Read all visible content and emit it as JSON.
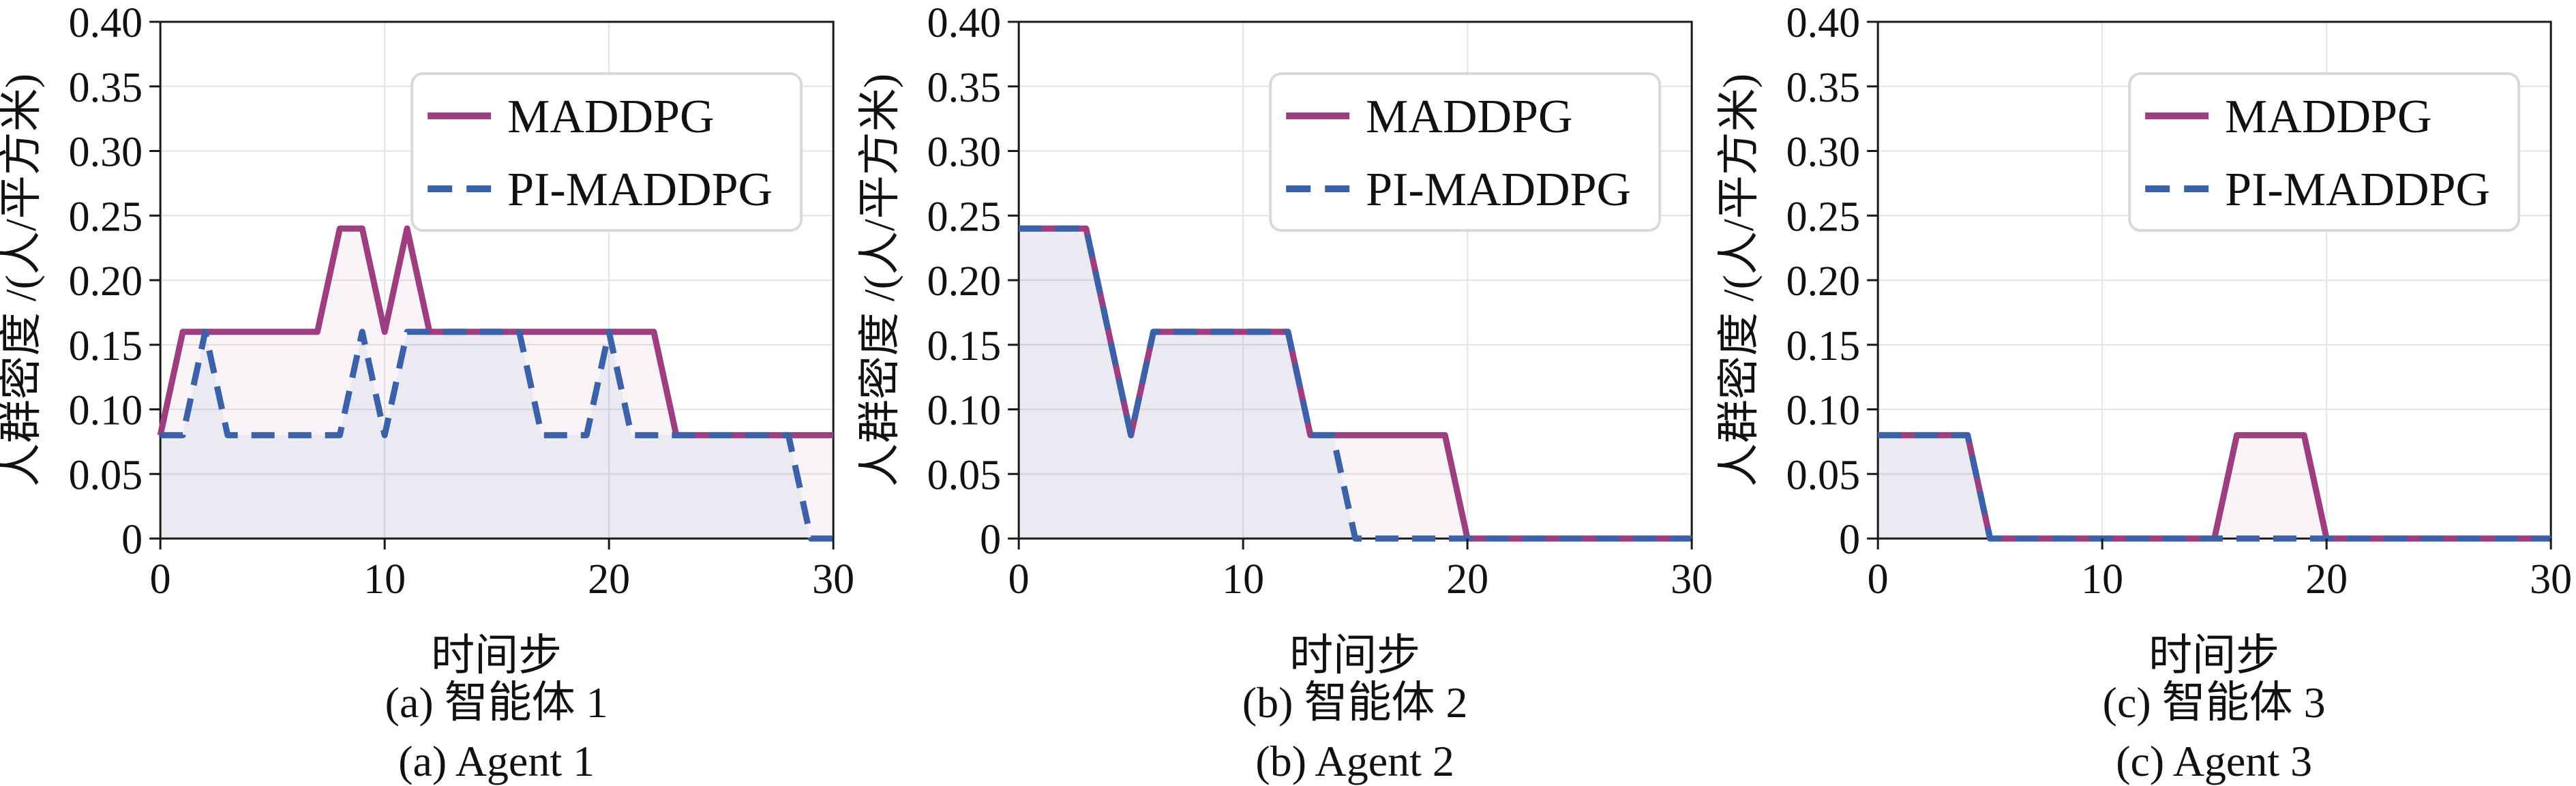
{
  "figure": {
    "ylabel": "人群密度 /(人/平方米)",
    "xlabel": "时间步",
    "legend": {
      "maddpg": "MADDPG",
      "pi_maddpg": "PI-MADDPG"
    },
    "ytick_labels": [
      "0",
      "0.05",
      "0.10",
      "0.15",
      "0.20",
      "0.25",
      "0.30",
      "0.35",
      "0.40"
    ],
    "xtick_labels": [
      "0",
      "10",
      "20",
      "30"
    ],
    "colors": {
      "maddpg": "#9e3d80",
      "pi_maddpg": "#3b62a9",
      "maddpg_fill": "rgba(158,61,128,0.06)",
      "pi_maddpg_fill": "rgba(59,98,169,0.07)",
      "grid": "#e4e4e4",
      "spine": "#1a1a1a",
      "text": "#111111",
      "legend_border": "#d9d9d9",
      "background": "#ffffff"
    }
  },
  "chart_data": [
    {
      "type": "line",
      "caption_cn": "(a) 智能体 1",
      "caption_en": "(a) Agent 1",
      "xlabel": "时间步",
      "ylabel": "人群密度 /(人/平方米)",
      "xlim": [
        0,
        30
      ],
      "ylim": [
        0,
        0.4
      ],
      "xticks": [
        0,
        10,
        20,
        30
      ],
      "yticks": [
        0,
        0.05,
        0.1,
        0.15,
        0.2,
        0.25,
        0.3,
        0.35,
        0.4
      ],
      "grid": true,
      "legend_position": "upper right",
      "x": [
        0,
        1,
        2,
        3,
        4,
        5,
        6,
        7,
        8,
        9,
        10,
        11,
        12,
        13,
        14,
        15,
        16,
        17,
        18,
        19,
        20,
        21,
        22,
        23,
        24,
        25,
        26,
        27,
        28,
        29,
        30
      ],
      "series": [
        {
          "name": "MADDPG",
          "line_style": "solid",
          "color": "#9e3d80",
          "values": [
            0.08,
            0.16,
            0.16,
            0.16,
            0.16,
            0.16,
            0.16,
            0.16,
            0.24,
            0.24,
            0.16,
            0.24,
            0.16,
            0.16,
            0.16,
            0.16,
            0.16,
            0.16,
            0.16,
            0.16,
            0.16,
            0.16,
            0.16,
            0.08,
            0.08,
            0.08,
            0.08,
            0.08,
            0.08,
            0.08,
            0.08
          ]
        },
        {
          "name": "PI-MADDPG",
          "line_style": "dashed",
          "color": "#3b62a9",
          "values": [
            0.08,
            0.08,
            0.16,
            0.08,
            0.08,
            0.08,
            0.08,
            0.08,
            0.08,
            0.16,
            0.08,
            0.16,
            0.16,
            0.16,
            0.16,
            0.16,
            0.16,
            0.08,
            0.08,
            0.08,
            0.16,
            0.08,
            0.08,
            0.08,
            0.08,
            0.08,
            0.08,
            0.08,
            0.08,
            0.0,
            0.0
          ]
        }
      ]
    },
    {
      "type": "line",
      "caption_cn": "(b) 智能体 2",
      "caption_en": "(b) Agent 2",
      "xlabel": "时间步",
      "ylabel": "人群密度 /(人/平方米)",
      "xlim": [
        0,
        30
      ],
      "ylim": [
        0,
        0.4
      ],
      "xticks": [
        0,
        10,
        20,
        30
      ],
      "yticks": [
        0,
        0.05,
        0.1,
        0.15,
        0.2,
        0.25,
        0.3,
        0.35,
        0.4
      ],
      "grid": true,
      "legend_position": "upper right",
      "x": [
        0,
        1,
        2,
        3,
        4,
        5,
        6,
        7,
        8,
        9,
        10,
        11,
        12,
        13,
        14,
        15,
        16,
        17,
        18,
        19,
        20,
        21,
        22,
        23,
        24,
        25,
        26,
        27,
        28,
        29,
        30
      ],
      "series": [
        {
          "name": "MADDPG",
          "line_style": "solid",
          "color": "#9e3d80",
          "values": [
            0.24,
            0.24,
            0.24,
            0.24,
            0.16,
            0.08,
            0.16,
            0.16,
            0.16,
            0.16,
            0.16,
            0.16,
            0.16,
            0.08,
            0.08,
            0.08,
            0.08,
            0.08,
            0.08,
            0.08,
            0.0,
            0.0,
            0.0,
            0.0,
            0.0,
            0.0,
            0.0,
            0.0,
            0.0,
            0.0,
            0.0
          ]
        },
        {
          "name": "PI-MADDPG",
          "line_style": "dashed",
          "color": "#3b62a9",
          "values": [
            0.24,
            0.24,
            0.24,
            0.24,
            0.16,
            0.08,
            0.16,
            0.16,
            0.16,
            0.16,
            0.16,
            0.16,
            0.16,
            0.08,
            0.08,
            0.0,
            0.0,
            0.0,
            0.0,
            0.0,
            0.0,
            0.0,
            0.0,
            0.0,
            0.0,
            0.0,
            0.0,
            0.0,
            0.0,
            0.0,
            0.0
          ]
        }
      ]
    },
    {
      "type": "line",
      "caption_cn": "(c) 智能体 3",
      "caption_en": "(c) Agent 3",
      "xlabel": "时间步",
      "ylabel": "人群密度 /(人/平方米)",
      "xlim": [
        0,
        30
      ],
      "ylim": [
        0,
        0.4
      ],
      "xticks": [
        0,
        10,
        20,
        30
      ],
      "yticks": [
        0,
        0.05,
        0.1,
        0.15,
        0.2,
        0.25,
        0.3,
        0.35,
        0.4
      ],
      "grid": true,
      "legend_position": "upper right",
      "x": [
        0,
        1,
        2,
        3,
        4,
        5,
        6,
        7,
        8,
        9,
        10,
        11,
        12,
        13,
        14,
        15,
        16,
        17,
        18,
        19,
        20,
        21,
        22,
        23,
        24,
        25,
        26,
        27,
        28,
        29,
        30
      ],
      "series": [
        {
          "name": "MADDPG",
          "line_style": "solid",
          "color": "#9e3d80",
          "values": [
            0.08,
            0.08,
            0.08,
            0.08,
            0.08,
            0.0,
            0.0,
            0.0,
            0.0,
            0.0,
            0.0,
            0.0,
            0.0,
            0.0,
            0.0,
            0.0,
            0.08,
            0.08,
            0.08,
            0.08,
            0.0,
            0.0,
            0.0,
            0.0,
            0.0,
            0.0,
            0.0,
            0.0,
            0.0,
            0.0,
            0.0
          ]
        },
        {
          "name": "PI-MADDPG",
          "line_style": "dashed",
          "color": "#3b62a9",
          "values": [
            0.08,
            0.08,
            0.08,
            0.08,
            0.08,
            0.0,
            0.0,
            0.0,
            0.0,
            0.0,
            0.0,
            0.0,
            0.0,
            0.0,
            0.0,
            0.0,
            0.0,
            0.0,
            0.0,
            0.0,
            0.0,
            0.0,
            0.0,
            0.0,
            0.0,
            0.0,
            0.0,
            0.0,
            0.0,
            0.0,
            0.0
          ]
        }
      ]
    }
  ]
}
